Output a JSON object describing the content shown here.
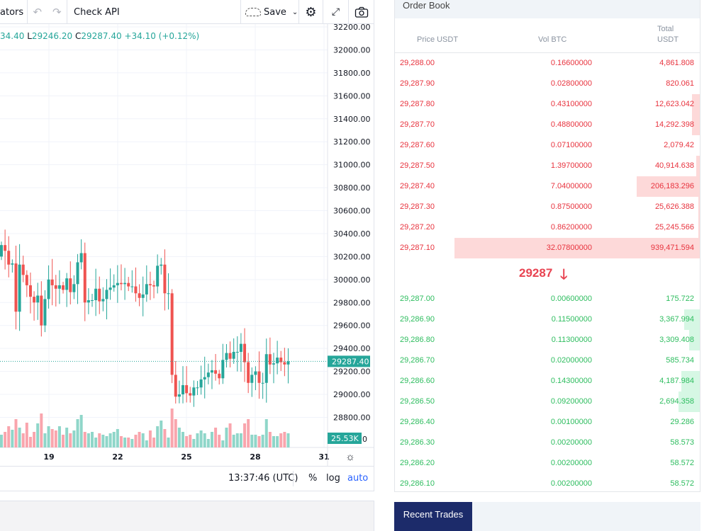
{
  "toolbar": {
    "indicators_label": "ators",
    "check_api": "Check API",
    "save_label": "Save"
  },
  "ohlc": {
    "h_tail": "34.40",
    "l_key": "L",
    "l_val": "29246.20",
    "c_key": "C",
    "c_val": "29287.40",
    "change": "+34.10 (+0.12%)"
  },
  "price_axis": {
    "labels": [
      "32200.00",
      "32000.00",
      "31800.00",
      "31600.00",
      "31400.00",
      "31200.00",
      "31000.00",
      "30800.00",
      "30600.00",
      "30400.00",
      "30200.00",
      "30000.00",
      "29800.00",
      "29600.00",
      "29400.00",
      "29200.00",
      "29000.00",
      "28800.00"
    ],
    "last_price": "29287.40",
    "volume_label": "25.53K",
    "volume_zero": "0"
  },
  "time_axis": {
    "labels": [
      "19",
      "22",
      "25",
      "28",
      "31"
    ]
  },
  "bottom": {
    "time": "13:37:46 (UTC)",
    "percent": "%",
    "log": "log",
    "auto": "auto"
  },
  "colors": {
    "up": "#26a69a",
    "down": "#ef5350",
    "ask": "#e8333e",
    "bid": "#2ebd5f",
    "auto": "#2962ff",
    "tab": "#1c2b6a"
  },
  "chart_data": {
    "type": "candlestick",
    "interval_note": "",
    "ylim": [
      28800,
      32200
    ],
    "closes": [
      30300,
      30250,
      30130,
      30140,
      29720,
      30130,
      30040,
      29950,
      29850,
      29800,
      29860,
      29600,
      29830,
      30000,
      29950,
      29920,
      29950,
      29910,
      30010,
      29890,
      29960,
      30150,
      30230,
      29800,
      29820,
      29820,
      29920,
      29810,
      29830,
      29910,
      29930,
      29950,
      29970,
      29960,
      29970,
      29940,
      29940,
      29880,
      29840,
      29870,
      29960,
      29950,
      29940,
      30120,
      30130,
      29880,
      29880,
      29170,
      28980,
      29000,
      29080,
      29010,
      28990,
      29060,
      29060,
      29130,
      29150,
      29190,
      29210,
      29180,
      29140,
      29300,
      29360,
      29310,
      29370,
      29370,
      29440,
      29280,
      29100,
      29170,
      29200,
      29100,
      29100,
      29350,
      29260,
      29270,
      29320,
      29280,
      29260,
      29287.4
    ],
    "volumes": [
      18,
      22,
      30,
      25,
      40,
      28,
      20,
      35,
      15,
      22,
      34,
      48,
      20,
      30,
      26,
      24,
      30,
      18,
      28,
      20,
      24,
      40,
      46,
      22,
      20,
      22,
      14,
      20,
      18,
      16,
      20,
      22,
      26,
      16,
      14,
      14,
      12,
      18,
      22,
      20,
      10,
      24,
      14,
      30,
      38,
      26,
      14,
      55,
      40,
      28,
      22,
      16,
      18,
      12,
      20,
      24,
      20,
      12,
      22,
      28,
      18,
      10,
      28,
      34,
      18,
      20,
      20,
      34,
      40,
      18,
      18,
      16,
      18,
      40,
      22,
      16,
      16,
      20,
      22,
      20
    ]
  },
  "orderbook": {
    "title": "Order Book",
    "col_price": "Price USDT",
    "col_vol": "Vol BTC",
    "col_total_1": "Total",
    "col_total_2": "USDT",
    "asks": [
      [
        "29,288.00",
        "0.16600000",
        "4,861.808",
        0
      ],
      [
        "29,287.90",
        "0.02800000",
        "820.061",
        0
      ],
      [
        "29,287.80",
        "0.43100000",
        "12,623.042",
        0.025
      ],
      [
        "29,287.70",
        "0.48800000",
        "14,292.398",
        0.025
      ],
      [
        "29,287.60",
        "0.07100000",
        "2,079.42",
        0
      ],
      [
        "29,287.50",
        "1.39700000",
        "40,914.638",
        0.012
      ],
      [
        "29,287.40",
        "7.04000000",
        "206,183.296",
        0.205
      ],
      [
        "29,287.30",
        "0.87500000",
        "25,626.388",
        0.005
      ],
      [
        "29,287.20",
        "0.86200000",
        "25,245.566",
        0.005
      ],
      [
        "29,287.10",
        "32.07800000",
        "939,471.594",
        0.8
      ]
    ],
    "mid_price": "29287",
    "mid_arrow": "arrow-down",
    "bids": [
      [
        "29,287.00",
        "0.00600000",
        "175.722",
        0
      ],
      [
        "29,286.90",
        "0.11500000",
        "3,367.994",
        0.05
      ],
      [
        "29,286.80",
        "0.11300000",
        "3,309.408",
        0.035
      ],
      [
        "29,286.70",
        "0.02000000",
        "585.734",
        0
      ],
      [
        "29,286.60",
        "0.14300000",
        "4,187.984",
        0.06
      ],
      [
        "29,286.50",
        "0.09200000",
        "2,694.358",
        0.07
      ],
      [
        "29,286.40",
        "0.00100000",
        "29.286",
        0
      ],
      [
        "29,286.30",
        "0.00200000",
        "58.573",
        0
      ],
      [
        "29,286.20",
        "0.00200000",
        "58.572",
        0
      ],
      [
        "29,286.10",
        "0.00200000",
        "58.572",
        0
      ]
    ]
  },
  "recent_trades": {
    "tab": "Recent Trades"
  }
}
